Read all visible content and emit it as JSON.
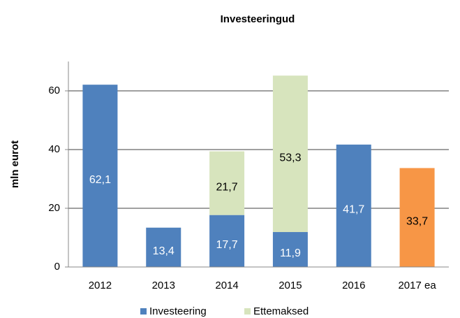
{
  "chart_data": {
    "type": "stacked_bar",
    "title": "Investeeringud",
    "y_label": "mln eurot",
    "categories": [
      "2012",
      "2013",
      "2014",
      "2015",
      "2016",
      "2017 ea"
    ],
    "series": [
      {
        "name": "Investeering",
        "color": "#4f81bd",
        "colors": [
          "#4f81bd",
          "#4f81bd",
          "#4f81bd",
          "#4f81bd",
          "#4f81bd",
          "#f79646"
        ],
        "label_colors": [
          "#ffffff",
          "#ffffff",
          "#ffffff",
          "#ffffff",
          "#ffffff",
          "#000000"
        ],
        "values": [
          62.1,
          13.4,
          17.7,
          11.9,
          41.7,
          33.7
        ],
        "value_labels": [
          "62,1",
          "13,4",
          "17,7",
          "11,9",
          "41,7",
          "33,7"
        ]
      },
      {
        "name": "Ettemaksed",
        "color": "#d7e4bd",
        "colors": [
          "#d7e4bd",
          "#d7e4bd",
          "#d7e4bd",
          "#d7e4bd",
          "#d7e4bd",
          "#d7e4bd"
        ],
        "label_colors": [
          "#000000",
          "#000000",
          "#000000",
          "#000000",
          "#000000",
          "#000000"
        ],
        "values": [
          null,
          null,
          21.7,
          53.3,
          null,
          null
        ],
        "value_labels": [
          null,
          null,
          "21,7",
          "53,3",
          null,
          null
        ]
      }
    ],
    "ylim": [
      0,
      70
    ],
    "yticks": [
      0,
      20,
      40,
      60
    ],
    "grid": true,
    "legend": "bottom"
  }
}
